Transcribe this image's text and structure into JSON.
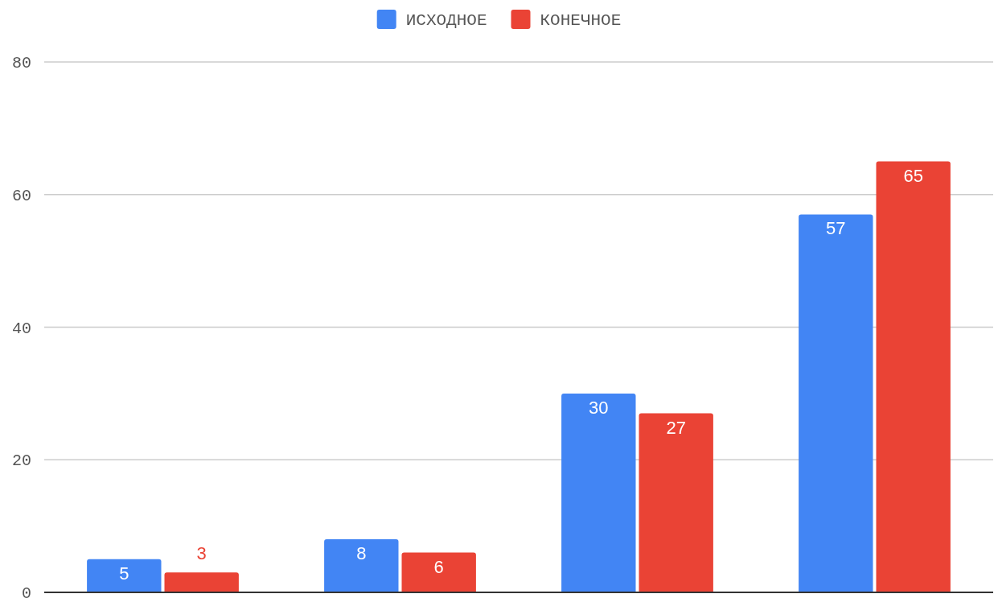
{
  "chart_data": {
    "type": "bar",
    "categories": [
      null,
      null,
      null,
      null
    ],
    "series": [
      {
        "name": "ИСХОДНОЕ",
        "color": "#4285f4",
        "values": [
          5,
          8,
          30,
          57
        ]
      },
      {
        "name": "КОНЕЧНОЕ",
        "color": "#ea4335",
        "values": [
          3,
          6,
          27,
          65
        ]
      }
    ],
    "ylim": [
      0,
      80
    ],
    "yticks": [
      0,
      20,
      40,
      60,
      80
    ],
    "grid": "y",
    "legend": "top",
    "data_labels": true
  }
}
